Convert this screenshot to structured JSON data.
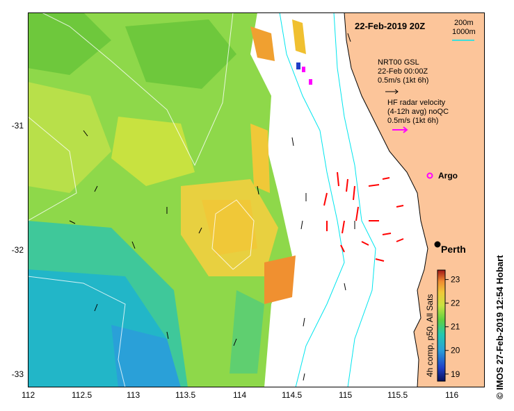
{
  "title": "22-Feb-2019 20Z",
  "depth_legend": {
    "d200": "200m",
    "d1000": "1000m"
  },
  "model_legend": {
    "line1": "NRT00 GSL",
    "line2": "22-Feb 00:00Z",
    "line3": "0.5m/s (1kt 6h)"
  },
  "radar_legend": {
    "line1": "HF radar velocity",
    "line2": "(4-12h avg) noQC",
    "line3": "0.5m/s (1kt 6h)"
  },
  "argo_label": "Argo",
  "city_label": "Perth",
  "colorbar": {
    "label": "4h comp, p50, All Sats",
    "ticks": [
      "23",
      "22",
      "21",
      "20",
      "19"
    ],
    "range": [
      18.7,
      23.4
    ]
  },
  "credit": "© IMOS 27-Feb-2019 12:54 Hobart",
  "axes": {
    "x_ticks": [
      "112",
      "112.5",
      "113",
      "113.5",
      "114",
      "114.5",
      "115",
      "115.5",
      "116"
    ],
    "y_ticks": [
      "-31",
      "-32",
      "-33"
    ]
  },
  "colors": {
    "land": "#fcc59a",
    "isobath": "#00e5ee",
    "radar_arrow": "#ff0000",
    "argo": "#ff00ff",
    "model_arrow": "#000000"
  }
}
